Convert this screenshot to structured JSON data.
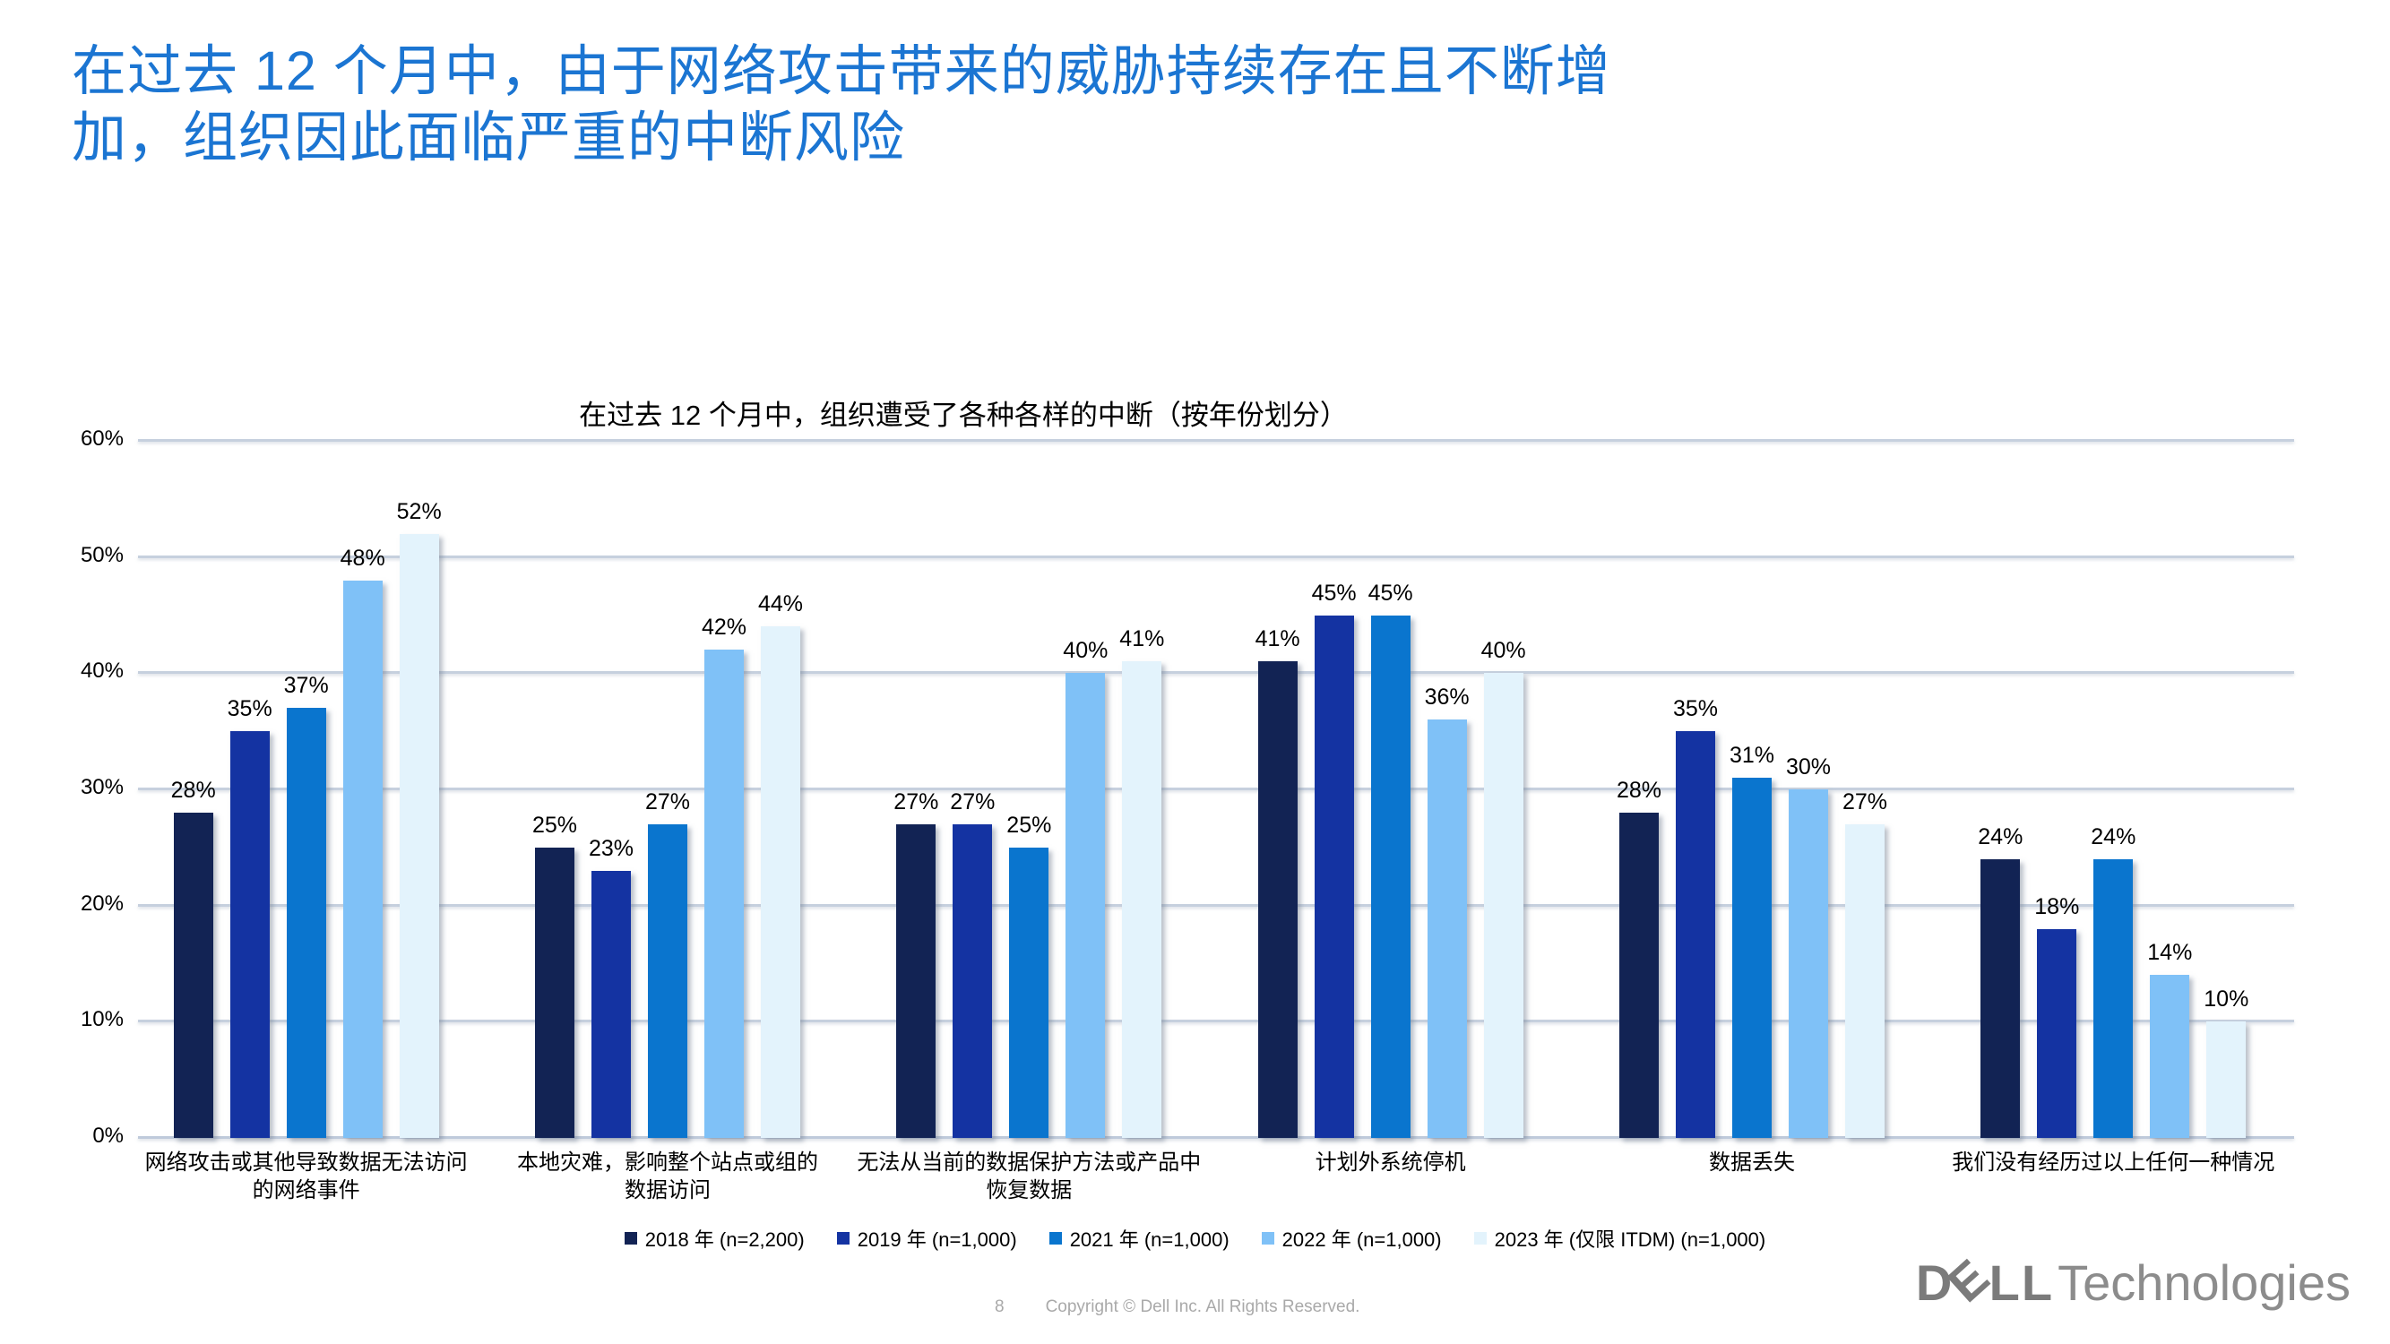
{
  "slide": {
    "title": "在过去 12 个月中，由于网络攻击带来的威胁持续存在且不断增\n加，组织因此面临严重的中断风险",
    "page_number": "8",
    "copyright": "Copyright © Dell Inc. All Rights Reserved.",
    "logo": {
      "d": "D",
      "e": "E",
      "l1": "L",
      "l2": "L",
      "suffix": "Technologies"
    }
  },
  "chart_data": {
    "type": "bar",
    "title": "在过去 12 个月中，组织遭受了各种各样的中断（按年份划分）",
    "categories": [
      "网络攻击或其他导致数据无法访问\n的网络事件",
      "本地灾难，影响整个站点或组的\n数据访问",
      "无法从当前的数据保护方法或产品中\n恢复数据",
      "计划外系统停机",
      "数据丢失",
      "我们没有经历过以上任何一种情况"
    ],
    "series": [
      {
        "name": "2018 年 (n=2,200)",
        "color": "#122354",
        "values": [
          28,
          25,
          27,
          41,
          28,
          24
        ]
      },
      {
        "name": "2019 年 (n=1,000)",
        "color": "#1433a2",
        "values": [
          35,
          23,
          27,
          45,
          35,
          18
        ]
      },
      {
        "name": "2021 年 (n=1,000)",
        "color": "#0a75ce",
        "values": [
          37,
          27,
          25,
          45,
          31,
          24
        ]
      },
      {
        "name": "2022 年 (n=1,000)",
        "color": "#7fc1f7",
        "values": [
          48,
          42,
          40,
          36,
          30,
          14
        ]
      },
      {
        "name": "2023 年 (仅限 ITDM)  (n=1,000)",
        "color": "#e3f3fc",
        "values": [
          52,
          44,
          41,
          40,
          27,
          10
        ]
      }
    ],
    "ylim": [
      0,
      60
    ],
    "ytick_step": 10,
    "value_suffix": "%",
    "grid": true,
    "legend_position": "bottom"
  }
}
